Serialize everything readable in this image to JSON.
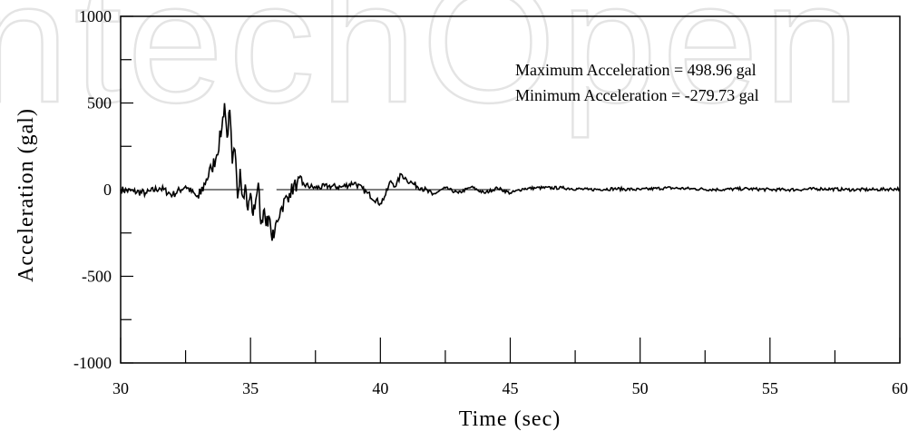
{
  "watermark": "ntechOpen",
  "chart_data": {
    "type": "line",
    "title": "",
    "xlabel": "Time (sec)",
    "ylabel": "Acceleration (gal)",
    "xlim": [
      30,
      60
    ],
    "ylim": [
      -1000,
      1000
    ],
    "x_ticks": [
      30,
      35,
      40,
      45,
      50,
      55,
      60
    ],
    "x_tick_labels": [
      "30",
      "35",
      "40",
      "45",
      "50",
      "55",
      "60"
    ],
    "x_minor_ticks": [
      32.5,
      37.5,
      42.5,
      47.5,
      52.5,
      57.5
    ],
    "y_ticks": [
      1000,
      500,
      0,
      -500,
      -1000
    ],
    "y_tick_labels": [
      "1000",
      "500",
      "0",
      "-500",
      "-1000"
    ],
    "y_minor_ticks": [
      750,
      250,
      -250,
      -750
    ],
    "grid": false,
    "annotations": [
      "Maximum Acceleration = 498.96 gal",
      "Minimum Acceleration = -279.73 gal"
    ],
    "series": [
      {
        "color": "#000000",
        "x": [
          30.0,
          30.5,
          31.0,
          31.5,
          32.0,
          32.5,
          33.0,
          33.3,
          33.5,
          33.7,
          33.9,
          34.0,
          34.1,
          34.2,
          34.3,
          34.4,
          34.5,
          34.6,
          34.7,
          34.8,
          34.9,
          35.0,
          35.1,
          35.2,
          35.3,
          35.4,
          35.5,
          35.6,
          35.7,
          35.8,
          35.9,
          36.0,
          36.2,
          36.5,
          36.8,
          37.0,
          37.5,
          38.0,
          38.5,
          39.0,
          39.5,
          40.0,
          40.2,
          40.4,
          40.6,
          40.8,
          41.0,
          41.3,
          41.6,
          42.0,
          42.5,
          43.0,
          43.5,
          44.0,
          44.5,
          45.0,
          45.5,
          46.0,
          47.0,
          48.0,
          49.0,
          50.0,
          51.0,
          52.0,
          53.0,
          54.0,
          55.0,
          56.0,
          57.0,
          58.0,
          59.0,
          60.0
        ],
        "y": [
          0,
          -10,
          -20,
          10,
          -30,
          20,
          -50,
          60,
          120,
          200,
          360,
          499,
          300,
          460,
          150,
          230,
          -50,
          120,
          -40,
          30,
          -120,
          -20,
          -150,
          -60,
          40,
          -200,
          -120,
          -210,
          -150,
          -260,
          -280,
          -180,
          -100,
          -20,
          40,
          30,
          10,
          20,
          15,
          40,
          -20,
          -80,
          -30,
          50,
          20,
          90,
          60,
          30,
          10,
          -30,
          10,
          -20,
          15,
          -20,
          10,
          -20,
          5,
          10,
          10,
          0,
          5,
          0,
          10,
          5,
          0,
          5,
          0,
          0,
          5,
          0,
          0,
          5
        ]
      }
    ]
  }
}
